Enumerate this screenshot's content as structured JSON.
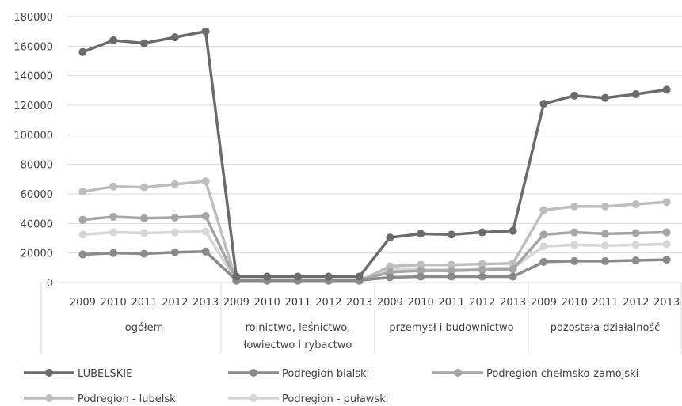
{
  "chart_data": {
    "type": "line",
    "years": [
      "2009",
      "2010",
      "2011",
      "2012",
      "2013"
    ],
    "groups": [
      {
        "lines": [
          "ogółem"
        ]
      },
      {
        "lines": [
          "rolnictwo, leśnictwo,",
          "łowiectwo i rybactwo"
        ]
      },
      {
        "lines": [
          "przemysł i budownictwo"
        ]
      },
      {
        "lines": [
          "pozostała działalność"
        ]
      }
    ],
    "ylim": [
      0,
      180000
    ],
    "yticks": [
      0,
      20000,
      40000,
      60000,
      80000,
      100000,
      120000,
      140000,
      160000,
      180000
    ],
    "grid": true,
    "legend_position": "bottom",
    "series": [
      {
        "name": "LUBELSKIE",
        "color": "#6b6b6b",
        "values": [
          156000,
          164000,
          162000,
          166000,
          170000,
          4000,
          4000,
          4000,
          4000,
          4000,
          30500,
          33000,
          32500,
          34000,
          35000,
          121000,
          126500,
          125000,
          127500,
          130500
        ]
      },
      {
        "name": "Podregion bialski",
        "color": "#8a8a8a",
        "values": [
          19000,
          20000,
          19500,
          20500,
          21000,
          1500,
          1500,
          1500,
          1500,
          1500,
          3500,
          4000,
          4000,
          4000,
          4000,
          14000,
          14500,
          14500,
          15000,
          15500
        ]
      },
      {
        "name": "Podregion chełmsko-zamojski",
        "color": "#a5a5a5",
        "values": [
          42500,
          44500,
          43500,
          44000,
          45000,
          1500,
          1500,
          1500,
          1500,
          1500,
          7000,
          8000,
          8000,
          8500,
          9000,
          32500,
          34000,
          33000,
          33500,
          34000
        ]
      },
      {
        "name": "Podregion - lubelski",
        "color": "#bdbdbd",
        "values": [
          61500,
          65000,
          64500,
          66500,
          68500,
          1000,
          1000,
          1000,
          1000,
          1000,
          11000,
          12000,
          12000,
          12500,
          13000,
          49000,
          51500,
          51500,
          53000,
          54500
        ]
      },
      {
        "name": "Podregion - puławski",
        "color": "#d6d6d6",
        "values": [
          32500,
          34000,
          33500,
          34000,
          34500,
          1000,
          1000,
          1000,
          1000,
          1000,
          9000,
          9500,
          9000,
          9500,
          10000,
          24500,
          25500,
          25000,
          25500,
          26000
        ]
      }
    ]
  }
}
